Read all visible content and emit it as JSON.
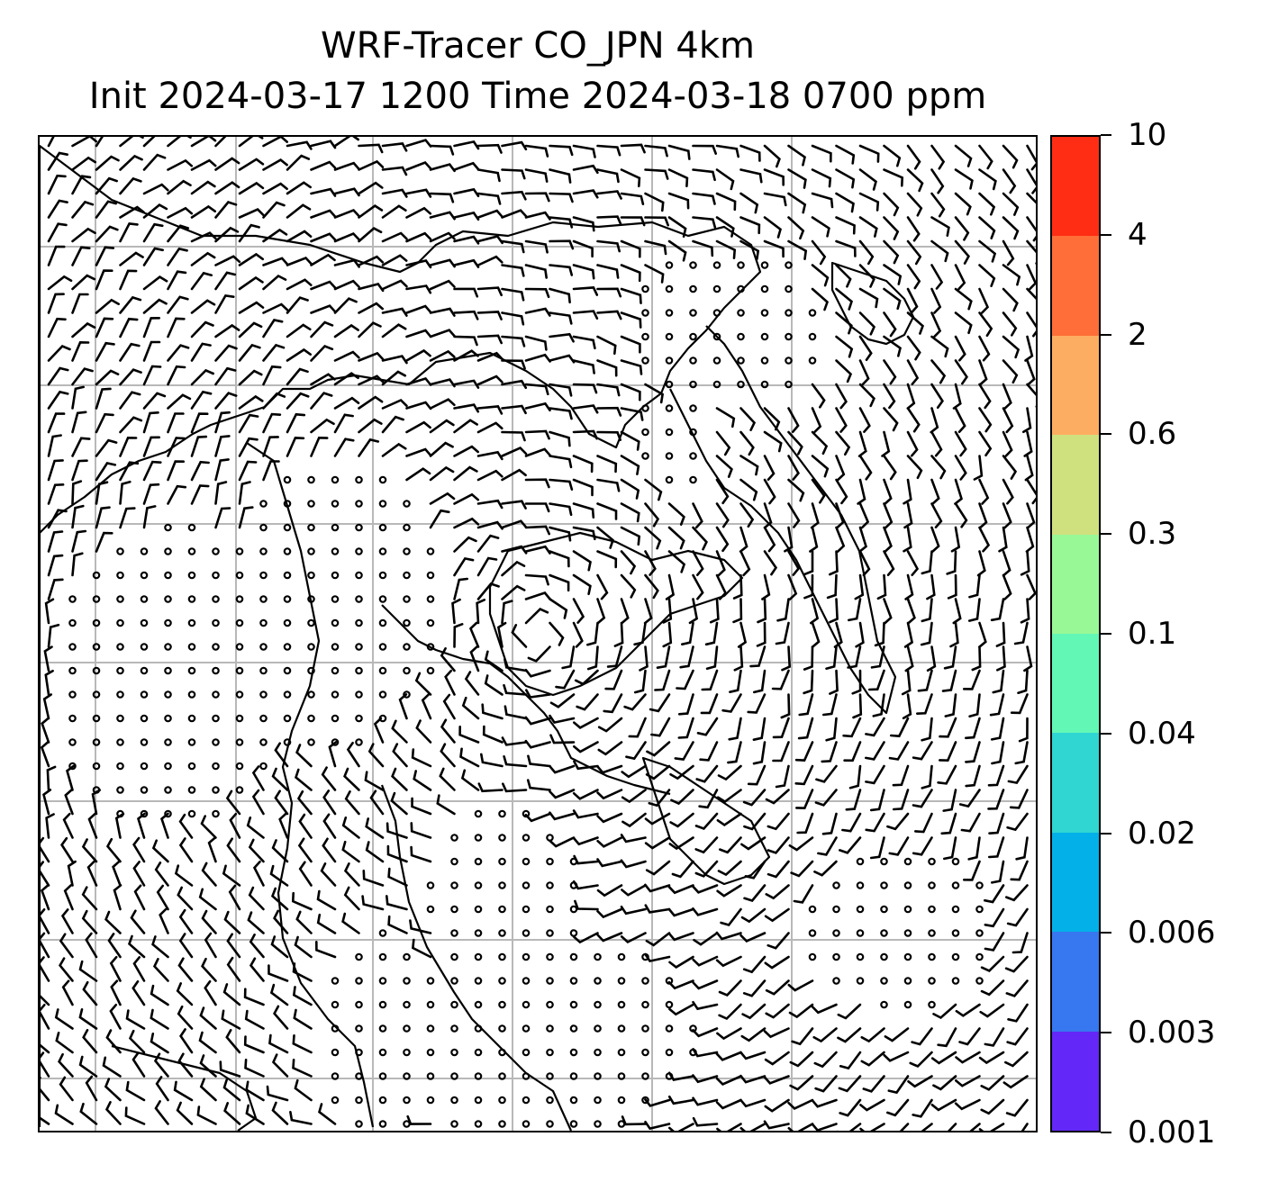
{
  "title": {
    "line1": "WRF-Tracer CO_JPN 4km",
    "line2": "Init 2024-03-17 1200 Time 2024-03-18 0700 ppm"
  },
  "colorbar": {
    "levels": [
      "0.001",
      "0.003",
      "0.006",
      "0.02",
      "0.04",
      "0.1",
      "0.3",
      "0.6",
      "2",
      "4",
      "10"
    ],
    "colors": [
      "#6328f8",
      "#3777f0",
      "#03b1e8",
      "#2fd6d2",
      "#63f7b6",
      "#99f896",
      "#cfe17f",
      "#fdad61",
      "#ff6e38",
      "#ff2d14"
    ]
  },
  "map": {
    "gridlines": "on",
    "wind_barbs": "on",
    "coastlines": "on",
    "gridline_color": "#b8b8b8"
  }
}
